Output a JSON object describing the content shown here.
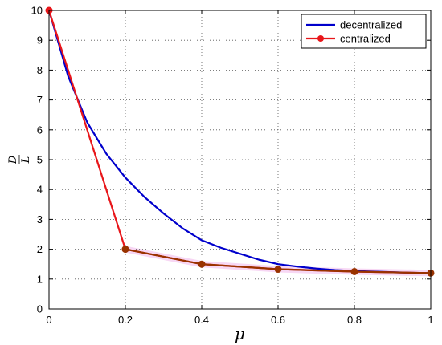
{
  "chart_data": {
    "type": "line",
    "title": "",
    "xlabel": "μ",
    "ylabel": {
      "numerator": "D",
      "denominator": "L"
    },
    "xlim": [
      0,
      1
    ],
    "ylim": [
      0,
      10
    ],
    "x_ticks": [
      0,
      0.2,
      0.4,
      0.6,
      0.8,
      1
    ],
    "x_tick_labels": [
      "0",
      "0.2",
      "0.4",
      "0.6",
      "0.8",
      "1"
    ],
    "y_ticks": [
      0,
      1,
      2,
      3,
      4,
      5,
      6,
      7,
      8,
      9,
      10
    ],
    "y_tick_labels": [
      "0",
      "1",
      "2",
      "3",
      "4",
      "5",
      "6",
      "7",
      "8",
      "9",
      "10"
    ],
    "grid": true,
    "legend_position": "top-right",
    "series": [
      {
        "name": "decentralized",
        "color": "#0000cc",
        "marker": "none",
        "x": [
          0,
          0.05,
          0.1,
          0.15,
          0.2,
          0.25,
          0.3,
          0.35,
          0.4,
          0.45,
          0.5,
          0.55,
          0.6,
          0.65,
          0.7,
          0.75,
          0.8,
          0.85,
          0.9,
          0.95,
          1.0
        ],
        "y": [
          10,
          7.8,
          6.25,
          5.2,
          4.4,
          3.75,
          3.2,
          2.7,
          2.3,
          2.05,
          1.85,
          1.65,
          1.5,
          1.42,
          1.35,
          1.3,
          1.27,
          1.25,
          1.23,
          1.21,
          1.2
        ]
      },
      {
        "name": "centralized",
        "color": "#e8161a",
        "marker": "circle",
        "x": [
          0,
          0.2,
          0.4,
          0.6,
          0.8,
          1.0
        ],
        "y": [
          10,
          2.0,
          1.5,
          1.33,
          1.25,
          1.2
        ]
      }
    ],
    "overlay_color": "#993300"
  }
}
